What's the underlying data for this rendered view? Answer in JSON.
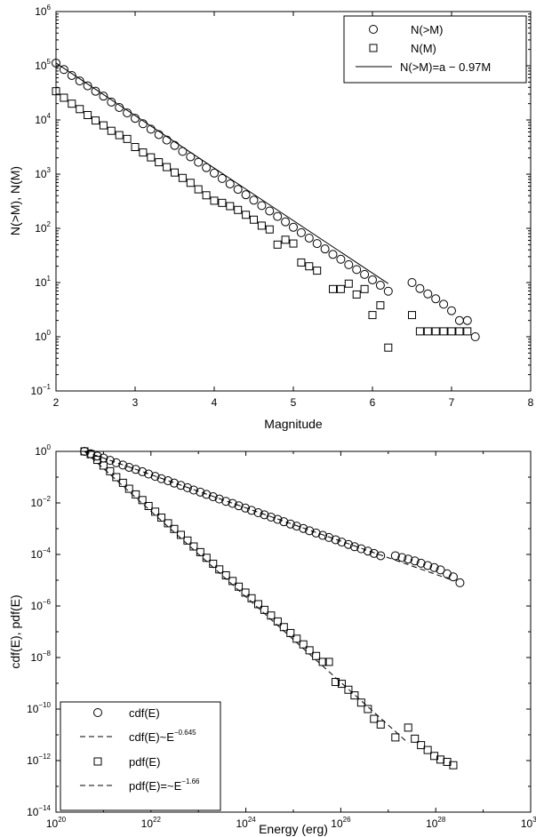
{
  "chart_data": [
    {
      "type": "scatter",
      "xlabel": "Magnitude",
      "ylabel": "N(>M), N(M)",
      "xlim": [
        2,
        8
      ],
      "ylim_exp": [
        -1,
        6
      ],
      "yscale": "log",
      "xticks": [
        2,
        3,
        4,
        5,
        6,
        7,
        8
      ],
      "xtick_labels": [
        "2",
        "3",
        "4",
        "5",
        "6",
        "7",
        "8"
      ],
      "yticks_exp": [
        -1,
        0,
        1,
        2,
        3,
        4,
        5,
        6
      ],
      "legend_position": "top-right",
      "legend": [
        {
          "label": "N(>M)",
          "marker": "circle"
        },
        {
          "label": "N(M)",
          "marker": "square"
        },
        {
          "label": "N(>M)=a − 0.97M",
          "marker": "line"
        }
      ],
      "series": [
        {
          "name": "N(>M)",
          "marker": "circle",
          "x": [
            2.0,
            2.1,
            2.2,
            2.3,
            2.4,
            2.5,
            2.6,
            2.7,
            2.8,
            2.9,
            3.0,
            3.1,
            3.2,
            3.3,
            3.4,
            3.5,
            3.6,
            3.7,
            3.8,
            3.9,
            4.0,
            4.1,
            4.2,
            4.3,
            4.4,
            4.5,
            4.6,
            4.7,
            4.8,
            4.9,
            5.0,
            5.1,
            5.2,
            5.3,
            5.4,
            5.5,
            5.6,
            5.7,
            5.8,
            5.9,
            6.0,
            6.1,
            6.2,
            6.5,
            6.6,
            6.7,
            6.8,
            6.9,
            7.0,
            7.1,
            7.2,
            7.3
          ],
          "logy": [
            5.05,
            4.93,
            4.82,
            4.72,
            4.63,
            4.53,
            4.44,
            4.33,
            4.23,
            4.13,
            4.03,
            3.93,
            3.83,
            3.73,
            3.63,
            3.53,
            3.42,
            3.32,
            3.22,
            3.12,
            3.02,
            2.92,
            2.82,
            2.72,
            2.62,
            2.52,
            2.42,
            2.32,
            2.22,
            2.12,
            2.02,
            1.92,
            1.82,
            1.72,
            1.62,
            1.52,
            1.43,
            1.33,
            1.24,
            1.15,
            1.05,
            0.95,
            0.84,
            1.0,
            0.89,
            0.79,
            0.7,
            0.6,
            0.48,
            0.3,
            0.3,
            0.0
          ]
        },
        {
          "name": "N(M)",
          "marker": "square",
          "x": [
            2.0,
            2.1,
            2.2,
            2.3,
            2.4,
            2.5,
            2.6,
            2.7,
            2.8,
            2.9,
            3.0,
            3.1,
            3.2,
            3.3,
            3.4,
            3.5,
            3.6,
            3.7,
            3.8,
            3.9,
            4.0,
            4.1,
            4.2,
            4.3,
            4.4,
            4.5,
            4.6,
            4.7,
            4.8,
            4.9,
            5.0,
            5.1,
            5.2,
            5.3,
            5.5,
            5.6,
            5.7,
            5.8,
            5.9,
            6.0,
            6.1,
            6.2,
            6.5,
            6.6,
            6.7,
            6.8,
            6.9,
            7.0,
            7.1,
            7.2
          ],
          "logy": [
            4.53,
            4.41,
            4.3,
            4.2,
            4.09,
            3.99,
            3.9,
            3.8,
            3.72,
            3.65,
            3.5,
            3.4,
            3.31,
            3.22,
            3.13,
            3.03,
            2.93,
            2.84,
            2.72,
            2.61,
            2.51,
            2.47,
            2.41,
            2.34,
            2.25,
            2.16,
            2.05,
            1.98,
            1.7,
            1.79,
            1.72,
            1.37,
            1.3,
            1.22,
            0.88,
            0.88,
            0.98,
            0.78,
            0.88,
            0.4,
            0.58,
            -0.2,
            0.4,
            0.1,
            0.1,
            0.1,
            0.1,
            0.1,
            0.1,
            0.1
          ]
        }
      ],
      "fit": {
        "name": "N(>M)=a − 0.97M",
        "x": [
          2.0,
          6.2
        ],
        "logy": [
          5.05,
          0.98
        ]
      }
    },
    {
      "type": "scatter",
      "xlabel": "Energy (erg)",
      "ylabel": "cdf(E), pdf(E)",
      "xscale": "log",
      "yscale": "log",
      "xlim_exp": [
        20,
        30
      ],
      "ylim_exp": [
        -14,
        0
      ],
      "xticks_exp": [
        20,
        22,
        24,
        26,
        28,
        30
      ],
      "yticks_exp": [
        0,
        -2,
        -4,
        -6,
        -8,
        -10,
        -12,
        -14
      ],
      "legend_position": "bottom-left",
      "legend": [
        {
          "label": "cdf(E)",
          "marker": "circle"
        },
        {
          "label": "cdf(E)~E",
          "exponent": "−0.645",
          "marker": "dashed"
        },
        {
          "label": "pdf(E)",
          "marker": "square"
        },
        {
          "label": "pdf(E)=~E",
          "exponent": "−1.66",
          "marker": "dashed"
        }
      ],
      "series": [
        {
          "name": "cdf(E)",
          "marker": "circle",
          "logx": [
            20.6,
            20.73,
            20.87,
            21.0,
            21.14,
            21.27,
            21.41,
            21.54,
            21.68,
            21.82,
            21.95,
            22.09,
            22.22,
            22.36,
            22.49,
            22.63,
            22.77,
            22.9,
            23.04,
            23.17,
            23.31,
            23.44,
            23.58,
            23.72,
            23.85,
            23.99,
            24.12,
            24.26,
            24.39,
            24.53,
            24.67,
            24.8,
            24.94,
            25.07,
            25.21,
            25.34,
            25.48,
            25.62,
            25.75,
            25.89,
            26.02,
            26.16,
            26.29,
            26.43,
            26.57,
            26.7,
            26.84,
            27.15,
            27.29,
            27.42,
            27.56,
            27.69,
            27.83,
            27.97,
            28.1,
            28.24,
            28.37,
            28.51
          ],
          "logy": [
            0.0,
            -0.09,
            -0.18,
            -0.26,
            -0.35,
            -0.44,
            -0.53,
            -0.62,
            -0.7,
            -0.79,
            -0.88,
            -0.97,
            -1.06,
            -1.14,
            -1.23,
            -1.32,
            -1.41,
            -1.5,
            -1.58,
            -1.67,
            -1.76,
            -1.85,
            -1.94,
            -2.02,
            -2.11,
            -2.2,
            -2.29,
            -2.38,
            -2.46,
            -2.55,
            -2.64,
            -2.73,
            -2.82,
            -2.9,
            -2.99,
            -3.08,
            -3.17,
            -3.26,
            -3.34,
            -3.43,
            -3.52,
            -3.61,
            -3.7,
            -3.78,
            -3.87,
            -3.96,
            -4.05,
            -4.05,
            -4.12,
            -4.18,
            -4.25,
            -4.34,
            -4.43,
            -4.51,
            -4.6,
            -4.75,
            -4.87,
            -5.1
          ]
        },
        {
          "name": "pdf(E)",
          "marker": "square",
          "logx": [
            20.6,
            20.73,
            20.87,
            21.0,
            21.14,
            21.27,
            21.41,
            21.54,
            21.68,
            21.82,
            21.95,
            22.09,
            22.22,
            22.36,
            22.49,
            22.63,
            22.77,
            22.9,
            23.04,
            23.17,
            23.31,
            23.44,
            23.58,
            23.72,
            23.85,
            23.99,
            24.12,
            24.26,
            24.39,
            24.53,
            24.67,
            24.8,
            24.94,
            25.07,
            25.21,
            25.34,
            25.48,
            25.62,
            25.75,
            25.89,
            26.02,
            26.16,
            26.29,
            26.43,
            26.57,
            26.7,
            26.84,
            27.15,
            27.42,
            27.56,
            27.69,
            27.83,
            27.97,
            28.1,
            28.24,
            28.37
          ],
          "logy": [
            0.0,
            -0.11,
            -0.33,
            -0.55,
            -0.77,
            -1.0,
            -1.22,
            -1.45,
            -1.67,
            -1.89,
            -2.12,
            -2.34,
            -2.57,
            -2.79,
            -3.01,
            -3.24,
            -3.46,
            -3.69,
            -3.91,
            -4.13,
            -4.36,
            -4.58,
            -4.81,
            -5.03,
            -5.25,
            -5.48,
            -5.7,
            -5.93,
            -6.15,
            -6.37,
            -6.6,
            -6.82,
            -7.05,
            -7.27,
            -7.49,
            -7.72,
            -7.94,
            -8.17,
            -8.17,
            -8.95,
            -9.02,
            -9.25,
            -9.47,
            -9.75,
            -10.0,
            -10.38,
            -10.6,
            -11.1,
            -10.72,
            -11.15,
            -11.4,
            -11.59,
            -11.82,
            -11.96,
            -12.05,
            -12.18
          ]
        }
      ],
      "fits": [
        {
          "name": "cdf(E)~E^-0.645",
          "logx": [
            20.6,
            28.37
          ],
          "logy": [
            0.0,
            -5.01
          ]
        },
        {
          "name": "pdf(E)=~E^-1.66",
          "logx": [
            20.6,
            27.42
          ],
          "logy": [
            0.0,
            -11.32
          ]
        }
      ]
    }
  ]
}
